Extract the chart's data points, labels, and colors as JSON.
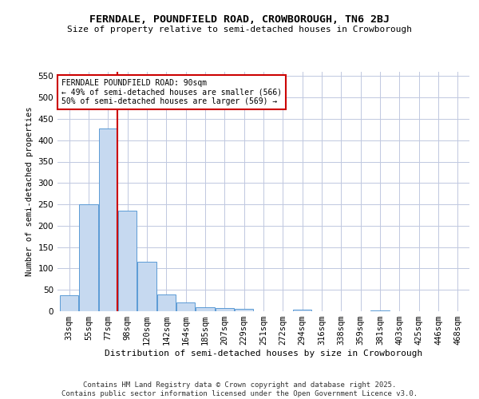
{
  "title_line1": "FERNDALE, POUNDFIELD ROAD, CROWBOROUGH, TN6 2BJ",
  "title_line2": "Size of property relative to semi-detached houses in Crowborough",
  "xlabel": "Distribution of semi-detached houses by size in Crowborough",
  "ylabel": "Number of semi-detached properties",
  "categories": [
    "33sqm",
    "55sqm",
    "77sqm",
    "98sqm",
    "120sqm",
    "142sqm",
    "164sqm",
    "185sqm",
    "207sqm",
    "229sqm",
    "251sqm",
    "272sqm",
    "294sqm",
    "316sqm",
    "338sqm",
    "359sqm",
    "381sqm",
    "403sqm",
    "425sqm",
    "446sqm",
    "468sqm"
  ],
  "values": [
    37,
    251,
    428,
    235,
    116,
    39,
    21,
    10,
    8,
    5,
    0,
    0,
    3,
    0,
    0,
    0,
    2,
    0,
    0,
    0,
    0
  ],
  "bar_color": "#c6d9f0",
  "bar_edge_color": "#5b9bd5",
  "grid_color": "#c0c8e0",
  "background_color": "#ffffff",
  "vline_x": 2.5,
  "vline_color": "#cc0000",
  "annotation_text": "FERNDALE POUNDFIELD ROAD: 90sqm\n← 49% of semi-detached houses are smaller (566)\n50% of semi-detached houses are larger (569) →",
  "annotation_box_color": "#ffffff",
  "annotation_box_edge": "#cc0000",
  "ylim": [
    0,
    560
  ],
  "yticks": [
    0,
    50,
    100,
    150,
    200,
    250,
    300,
    350,
    400,
    450,
    500,
    550
  ],
  "footer_line1": "Contains HM Land Registry data © Crown copyright and database right 2025.",
  "footer_line2": "Contains public sector information licensed under the Open Government Licence v3.0."
}
